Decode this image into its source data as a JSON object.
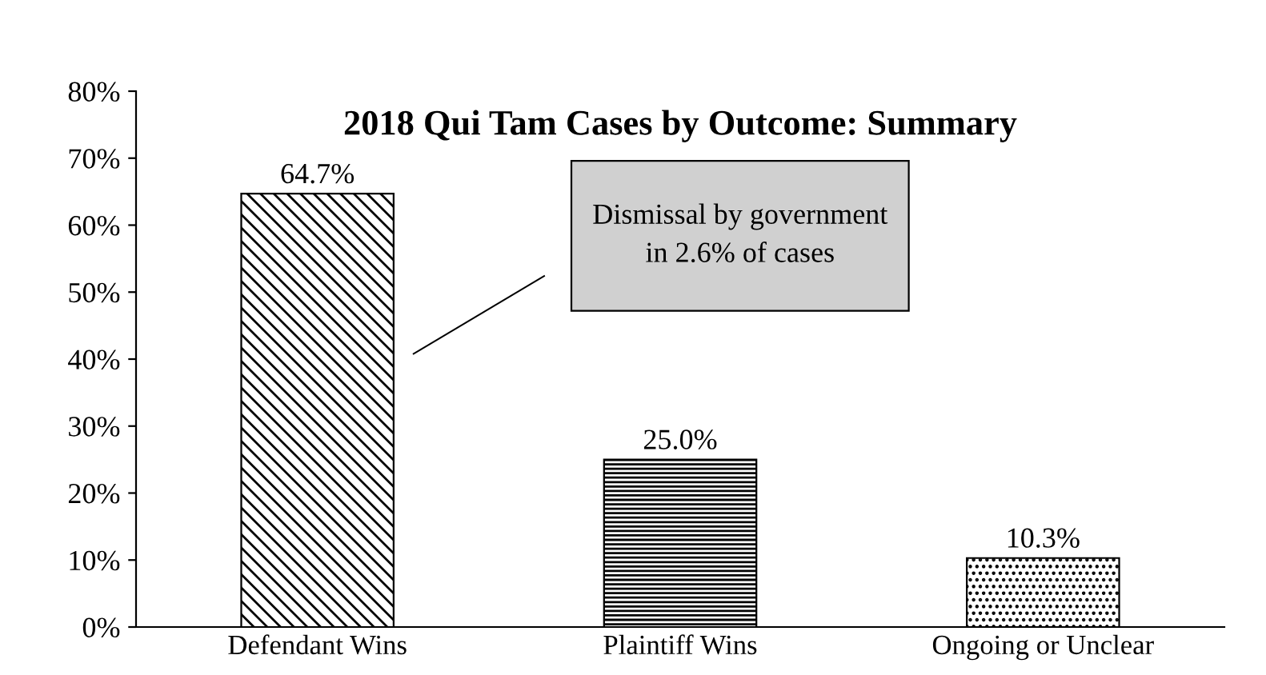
{
  "chart_data": {
    "type": "bar",
    "title": "2018 Qui Tam Cases by Outcome: Summary",
    "categories": [
      "Defendant Wins",
      "Plaintiff Wins",
      "Ongoing or Unclear"
    ],
    "values": [
      64.7,
      25.0,
      10.3
    ],
    "value_labels": [
      "64.7%",
      "25.0%",
      "10.3%"
    ],
    "colors": [
      "#000000",
      "#000000",
      "#000000"
    ],
    "ylim": [
      0,
      80
    ],
    "yticks": [
      {
        "value": 0,
        "label": "0%"
      },
      {
        "value": 10,
        "label": "10%"
      },
      {
        "value": 20,
        "label": "20%"
      },
      {
        "value": 30,
        "label": "30%"
      },
      {
        "value": 40,
        "label": "40%"
      },
      {
        "value": 50,
        "label": "50%"
      },
      {
        "value": 60,
        "label": "60%"
      },
      {
        "value": 70,
        "label": "70%"
      },
      {
        "value": 80,
        "label": "80%"
      }
    ],
    "annotations": [
      "Dismissal by government\nin 2.6% of cases"
    ],
    "grid": false,
    "legend": false
  }
}
